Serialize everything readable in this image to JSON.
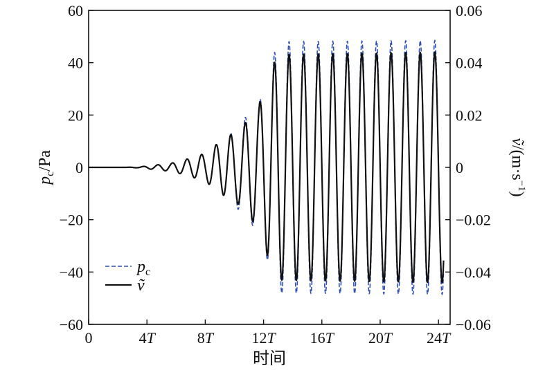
{
  "chart_data": {
    "type": "line",
    "x_axis": {
      "label": "时间",
      "range": [
        0,
        24.8
      ],
      "ticks": [
        0,
        4,
        8,
        12,
        16,
        20,
        24
      ],
      "tick_labels": [
        "0",
        "4T",
        "8T",
        "12T",
        "16T",
        "20T",
        "24T"
      ]
    },
    "y_left": {
      "label": "p_c/Pa",
      "label_main": "p",
      "label_sub": "c",
      "label_unit": "/Pa",
      "range": [
        -60,
        60
      ],
      "ticks": [
        60,
        40,
        20,
        0,
        -20,
        -40,
        -60
      ],
      "tick_labels": [
        "60",
        "40",
        "20",
        "0",
        "−20",
        "−40",
        "−60"
      ]
    },
    "y_right": {
      "label": "ṽ/(m·s⁻¹)",
      "label_main": "ṽ",
      "label_unit": "/(m·s",
      "label_sup": "−1",
      "label_close": ")",
      "range": [
        -0.06,
        0.06
      ],
      "ticks": [
        0.06,
        0.04,
        0.02,
        0,
        -0.02,
        -0.04,
        -0.06
      ],
      "tick_labels": [
        "0.06",
        "0.04",
        "0.02",
        "0",
        "−0.02",
        "−0.04",
        "−0.06"
      ]
    },
    "series": [
      {
        "name": "p_c",
        "legend_main": "p",
        "legend_sub": "c",
        "style": "dashed",
        "color": "#2f4fb8",
        "axis": "left",
        "period": 1,
        "peaks": [
          {
            "t": 0.0,
            "a": 0
          },
          {
            "t": 2.5,
            "a": 0
          },
          {
            "t": 3.5,
            "a": 0.3
          },
          {
            "t": 4.75,
            "a": 1
          },
          {
            "t": 5.6,
            "a": 1.5
          },
          {
            "t": 6.35,
            "a": 2.5
          },
          {
            "t": 7.25,
            "a": 4
          },
          {
            "t": 8.05,
            "a": 5.5
          },
          {
            "t": 8.7,
            "a": 8.5
          },
          {
            "t": 9.6,
            "a": 12
          },
          {
            "t": 10.25,
            "a": 16
          },
          {
            "t": 10.9,
            "a": 20
          },
          {
            "t": 11.7,
            "a": 25
          },
          {
            "t": 12.4,
            "a": 38
          },
          {
            "t": 13.0,
            "a": 48
          },
          {
            "t": 24.0,
            "a": 48.5
          }
        ],
        "end_t": 24.35
      },
      {
        "name": "ṽ",
        "legend_main": "ṽ",
        "style": "solid",
        "color": "#111111",
        "axis": "left",
        "period": 1,
        "peaks": [
          {
            "t": 0.0,
            "a": 0
          },
          {
            "t": 2.5,
            "a": 0
          },
          {
            "t": 3.5,
            "a": 0.2
          },
          {
            "t": 4.75,
            "a": 1
          },
          {
            "t": 5.6,
            "a": 1.5
          },
          {
            "t": 6.35,
            "a": 2.5
          },
          {
            "t": 7.25,
            "a": 4
          },
          {
            "t": 8.05,
            "a": 5.5
          },
          {
            "t": 8.7,
            "a": 8.5
          },
          {
            "t": 9.6,
            "a": 12
          },
          {
            "t": 10.25,
            "a": 14
          },
          {
            "t": 10.9,
            "a": 18
          },
          {
            "t": 11.7,
            "a": 24
          },
          {
            "t": 12.4,
            "a": 36
          },
          {
            "t": 13.0,
            "a": 43
          },
          {
            "t": 24.0,
            "a": 44
          }
        ],
        "end_t": 24.35
      }
    ],
    "legend": {
      "position": "bottom-left"
    },
    "grid": false
  }
}
